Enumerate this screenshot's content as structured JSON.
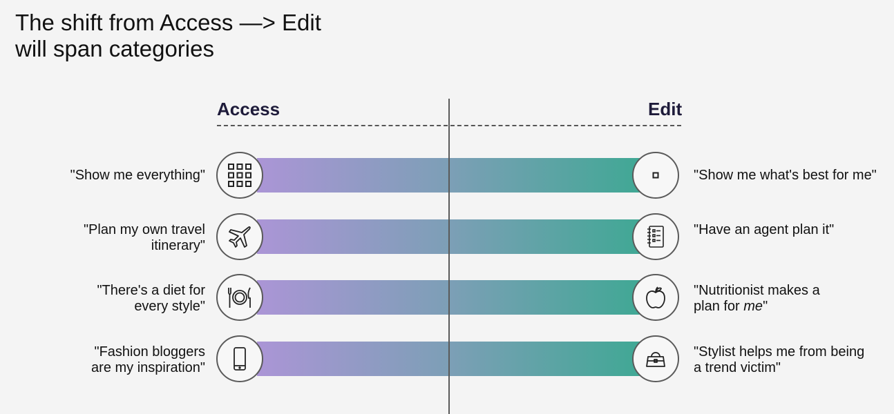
{
  "title": {
    "line1": "The shift from Access —> Edit",
    "line2": "will span categories"
  },
  "columns": {
    "left": "Access",
    "right": "Edit"
  },
  "colors": {
    "gradient_start": "#ab95d6",
    "gradient_mid": "#7c9fb6",
    "gradient_end": "#3fa894",
    "divider": "#5a5a5a"
  },
  "rows": [
    {
      "left_icon": "grid-icon",
      "right_icon": "single-square-icon",
      "left_lines": [
        "\"Show me everything\""
      ],
      "right_lines": [
        "\"Show me what's best for me\""
      ]
    },
    {
      "left_icon": "airplane-icon",
      "right_icon": "notebook-icon",
      "left_lines": [
        "\"Plan my own travel",
        "itinerary\""
      ],
      "right_lines": [
        "\"Have an agent plan it\""
      ]
    },
    {
      "left_icon": "plate-cutlery-icon",
      "right_icon": "apple-icon",
      "left_lines": [
        "\"There's a diet for",
        "every style\""
      ],
      "right_lines": [
        "\"Nutritionist makes a",
        "plan for "
      ],
      "right_emphasis": "me",
      "right_suffix": "\""
    },
    {
      "left_icon": "smartphone-icon",
      "right_icon": "handbag-icon",
      "left_lines": [
        "\"Fashion bloggers",
        "are my inspiration\""
      ],
      "right_lines": [
        "\"Stylist helps me from being",
        "a trend victim\""
      ]
    }
  ]
}
